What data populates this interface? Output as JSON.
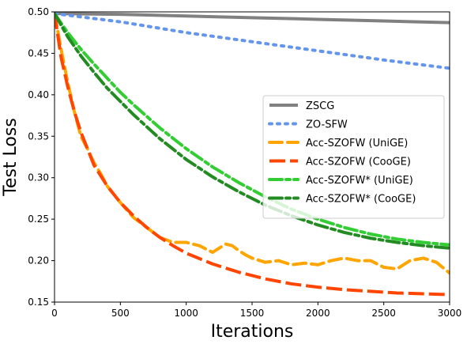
{
  "chart_data": {
    "type": "line",
    "xlabel": "Iterations",
    "ylabel": "Test Loss",
    "xlim": [
      0,
      3000
    ],
    "ylim": [
      0.15,
      0.5
    ],
    "xticks": [
      "0",
      "500",
      "1000",
      "1500",
      "2000",
      "2500",
      "3000"
    ],
    "yticks": [
      "0.15",
      "0.20",
      "0.25",
      "0.30",
      "0.35",
      "0.40",
      "0.45",
      "0.50"
    ],
    "xtick_values": [
      0,
      500,
      1000,
      1500,
      2000,
      2500,
      3000
    ],
    "ytick_values": [
      0.15,
      0.2,
      0.25,
      0.3,
      0.35,
      0.4,
      0.45,
      0.5
    ],
    "grid": false,
    "legend_position": "center-right",
    "series": [
      {
        "name": "ZSCG",
        "color": "#808080",
        "dash": "solid",
        "x": [
          0,
          500,
          1000,
          1500,
          2000,
          2500,
          3000
        ],
        "y": [
          0.498,
          0.497,
          0.495,
          0.493,
          0.491,
          0.489,
          0.487
        ]
      },
      {
        "name": "ZO-SFW",
        "color": "#6495ED",
        "dash": "dotted",
        "x": [
          0,
          500,
          1000,
          1500,
          2000,
          2500,
          3000
        ],
        "y": [
          0.498,
          0.488,
          0.475,
          0.464,
          0.453,
          0.442,
          0.432
        ]
      },
      {
        "name": "Acc-SZOFW (UniGE)",
        "color": "#FFA500",
        "dash": "dashed",
        "x": [
          0,
          50,
          100,
          150,
          200,
          250,
          300,
          350,
          400,
          500,
          600,
          700,
          800,
          900,
          1000,
          1100,
          1200,
          1250,
          1300,
          1350,
          1400,
          1450,
          1500,
          1600,
          1700,
          1800,
          1900,
          2000,
          2100,
          2200,
          2300,
          2400,
          2500,
          2600,
          2700,
          2800,
          2900,
          3000
        ],
        "y": [
          0.498,
          0.455,
          0.415,
          0.38,
          0.35,
          0.335,
          0.318,
          0.305,
          0.29,
          0.27,
          0.252,
          0.24,
          0.228,
          0.222,
          0.222,
          0.218,
          0.21,
          0.215,
          0.22,
          0.218,
          0.212,
          0.207,
          0.203,
          0.198,
          0.2,
          0.195,
          0.197,
          0.195,
          0.2,
          0.203,
          0.2,
          0.2,
          0.192,
          0.19,
          0.2,
          0.203,
          0.198,
          0.185
        ]
      },
      {
        "name": "Acc-SZOFW (CooGE)",
        "color": "#FF4500",
        "dash": "longdash",
        "x": [
          0,
          50,
          100,
          150,
          200,
          250,
          300,
          400,
          500,
          600,
          700,
          800,
          900,
          1000,
          1200,
          1400,
          1600,
          1800,
          2000,
          2200,
          2400,
          2600,
          2800,
          3000
        ],
        "y": [
          0.498,
          0.445,
          0.41,
          0.38,
          0.355,
          0.335,
          0.315,
          0.29,
          0.27,
          0.254,
          0.24,
          0.228,
          0.218,
          0.209,
          0.196,
          0.186,
          0.178,
          0.172,
          0.168,
          0.165,
          0.163,
          0.161,
          0.16,
          0.159
        ]
      },
      {
        "name": "Acc-SZOFW* (UniGE)",
        "color": "#32CD32",
        "dash": "dashdot",
        "x": [
          0,
          100,
          200,
          300,
          400,
          500,
          600,
          800,
          1000,
          1200,
          1400,
          1600,
          1800,
          2000,
          2200,
          2400,
          2600,
          2800,
          3000
        ],
        "y": [
          0.498,
          0.475,
          0.455,
          0.437,
          0.42,
          0.403,
          0.388,
          0.36,
          0.335,
          0.313,
          0.294,
          0.277,
          0.262,
          0.25,
          0.24,
          0.232,
          0.226,
          0.222,
          0.219
        ]
      },
      {
        "name": "Acc-SZOFW* (CooGE)",
        "color": "#228B22",
        "dash": "dashdot",
        "x": [
          0,
          100,
          200,
          300,
          400,
          500,
          600,
          800,
          1000,
          1200,
          1400,
          1600,
          1800,
          2000,
          2200,
          2400,
          2600,
          2800,
          3000
        ],
        "y": [
          0.498,
          0.47,
          0.447,
          0.427,
          0.408,
          0.392,
          0.376,
          0.347,
          0.322,
          0.301,
          0.283,
          0.267,
          0.254,
          0.243,
          0.234,
          0.227,
          0.222,
          0.218,
          0.215
        ]
      }
    ]
  }
}
